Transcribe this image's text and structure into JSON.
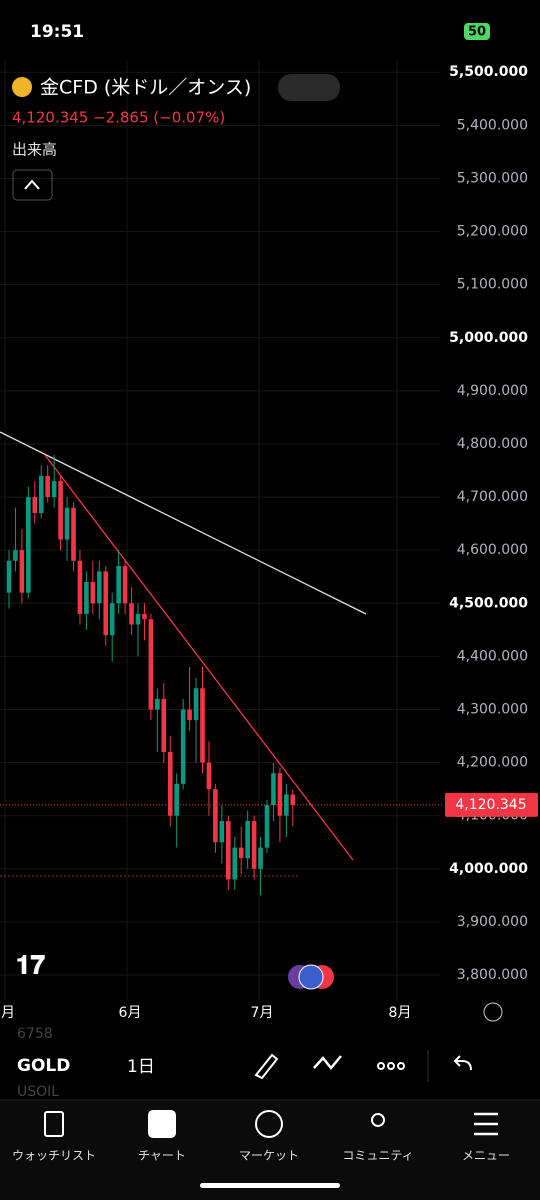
{
  "status_bar": {
    "time": "19:51",
    "battery": "50"
  },
  "header": {
    "title": "金CFD (米ドル／オンス)",
    "change": "−2.865 (−0.07%)",
    "volume_label": "出来高"
  },
  "chart_data": {
    "type": "candlestick",
    "last_price": {
      "value": 4120.345,
      "label": "4,120.345"
    },
    "ylim": [
      3753,
      5523
    ],
    "yticks": [
      {
        "value": 3800,
        "label": "3,800.000"
      },
      {
        "value": 3900,
        "label": "3,900.000"
      },
      {
        "value": 4000,
        "label": "4,000.000"
      },
      {
        "value": 4100,
        "label": "4,100.000"
      },
      {
        "value": 4200,
        "label": "4,200.000"
      },
      {
        "value": 4300,
        "label": "4,300.000"
      },
      {
        "value": 4400,
        "label": "4,400.000"
      },
      {
        "value": 4500,
        "label": "4,500.000"
      },
      {
        "value": 4600,
        "label": "4,600.000"
      },
      {
        "value": 4700,
        "label": "4,700.000"
      },
      {
        "value": 4800,
        "label": "4,800.000"
      },
      {
        "value": 4900,
        "label": "4,900.000"
      },
      {
        "value": 5000,
        "label": "5,000.000"
      },
      {
        "value": 5100,
        "label": "5,100.000"
      },
      {
        "value": 5200,
        "label": "5,200.000"
      },
      {
        "value": 5300,
        "label": "5,300.000"
      },
      {
        "value": 5400,
        "label": "5,400.000"
      },
      {
        "value": 5500,
        "label": "5,500.000"
      }
    ],
    "x_labels": [
      "月",
      "6月",
      "7月",
      "8月"
    ],
    "up_color": "#089981",
    "down_color": "#f23645",
    "ohlc": [
      [
        4520,
        4600,
        4490,
        4580
      ],
      [
        4580,
        4680,
        4560,
        4600
      ],
      [
        4600,
        4640,
        4500,
        4520
      ],
      [
        4520,
        4720,
        4510,
        4700
      ],
      [
        4700,
        4730,
        4650,
        4670
      ],
      [
        4670,
        4760,
        4660,
        4740
      ],
      [
        4740,
        4760,
        4690,
        4700
      ],
      [
        4700,
        4780,
        4680,
        4730
      ],
      [
        4730,
        4740,
        4600,
        4620
      ],
      [
        4620,
        4700,
        4580,
        4680
      ],
      [
        4680,
        4690,
        4560,
        4580
      ],
      [
        4580,
        4600,
        4460,
        4480
      ],
      [
        4480,
        4560,
        4450,
        4540
      ],
      [
        4540,
        4580,
        4480,
        4500
      ],
      [
        4500,
        4580,
        4470,
        4560
      ],
      [
        4560,
        4570,
        4420,
        4440
      ],
      [
        4440,
        4520,
        4390,
        4500
      ],
      [
        4500,
        4600,
        4480,
        4570
      ],
      [
        4570,
        4580,
        4480,
        4500
      ],
      [
        4500,
        4530,
        4440,
        4460
      ],
      [
        4460,
        4500,
        4400,
        4480
      ],
      [
        4480,
        4500,
        4430,
        4470
      ],
      [
        4470,
        4480,
        4280,
        4300
      ],
      [
        4300,
        4340,
        4220,
        4320
      ],
      [
        4320,
        4350,
        4200,
        4220
      ],
      [
        4220,
        4250,
        4080,
        4100
      ],
      [
        4100,
        4180,
        4040,
        4160
      ],
      [
        4160,
        4320,
        4150,
        4300
      ],
      [
        4300,
        4380,
        4260,
        4280
      ],
      [
        4280,
        4360,
        4200,
        4340
      ],
      [
        4340,
        4380,
        4180,
        4200
      ],
      [
        4200,
        4240,
        4100,
        4150
      ],
      [
        4150,
        4160,
        4030,
        4050
      ],
      [
        4050,
        4120,
        4010,
        4090
      ],
      [
        4090,
        4100,
        3960,
        3980
      ],
      [
        3980,
        4060,
        3960,
        4040
      ],
      [
        4040,
        4080,
        3990,
        4020
      ],
      [
        4020,
        4110,
        4000,
        4090
      ],
      [
        4090,
        4100,
        3980,
        4000
      ],
      [
        4000,
        4060,
        3950,
        4040
      ],
      [
        4040,
        4130,
        4030,
        4120
      ],
      [
        4120,
        4200,
        4090,
        4180
      ],
      [
        4180,
        4190,
        4050,
        4100
      ],
      [
        4100,
        4160,
        4060,
        4140
      ],
      [
        4140,
        4150,
        4080,
        4120
      ]
    ]
  },
  "toolbar": {
    "symbol": "GOLD",
    "interval": "1日",
    "behind_1": "6758",
    "behind_2": "USOIL"
  },
  "tabs": [
    "ウォッチリスト",
    "チャート",
    "マーケット",
    "コミュニティ",
    "メニュー"
  ]
}
